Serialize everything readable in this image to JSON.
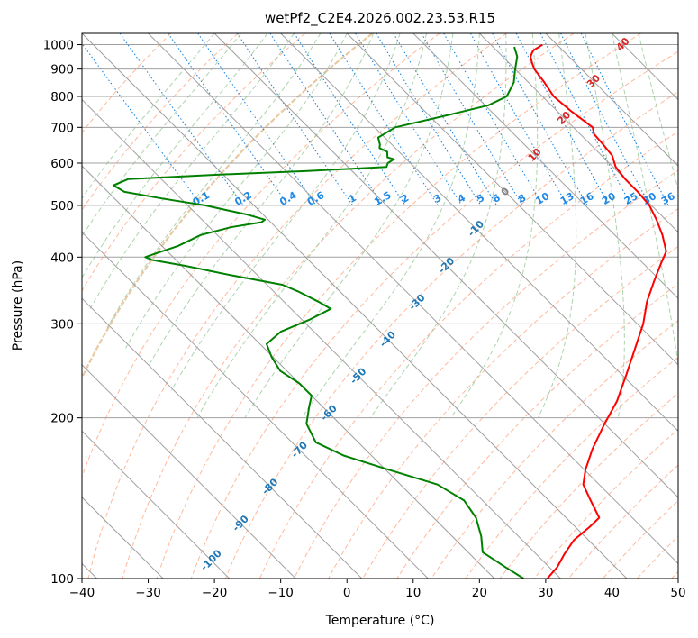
{
  "chart_data": {
    "type": "skew-t",
    "title": "wetPf2_C2E4.2026.002.23.53.R15",
    "xlabel": "Temperature (°C)",
    "ylabel": "Pressure (hPa)",
    "xlim": [
      -40,
      50
    ],
    "ylim": [
      1050,
      100
    ],
    "y_scale": "log",
    "grid": true,
    "x_ticks": [
      -40,
      -30,
      -20,
      -10,
      0,
      10,
      20,
      30,
      40,
      50
    ],
    "y_ticks": [
      100,
      200,
      300,
      400,
      500,
      600,
      700,
      800,
      900,
      1000
    ],
    "colors": {
      "temperature": "#ff0000",
      "dewpoint": "#008000",
      "isotherms": "#a0a0a0",
      "dry_adiabats": "#ffa07a",
      "moist_adiabats": "#98c898",
      "mixing_ratio": "#1e88e5",
      "zero_isotherm": "#e6c8a0"
    },
    "isotherm_labels": {
      "color": "#1f77b4",
      "values": [
        -100,
        -90,
        -80,
        -70,
        -60,
        -50,
        -40,
        -30,
        -20,
        -10
      ]
    },
    "isotherm_labels_mid": {
      "color": "#808080",
      "values": [
        0
      ]
    },
    "isotherm_labels_warm": {
      "color": "#d62728",
      "values": [
        10,
        20,
        30,
        40
      ]
    },
    "mixing_ratio_labels": {
      "color": "#1e88e5",
      "label_pressure": 500,
      "values": [
        "0.1",
        "0.2",
        "0.4",
        "0.6",
        "1",
        "1.5",
        "2",
        "3",
        "4",
        "5",
        "6",
        "8",
        "10",
        "13",
        "16",
        "20",
        "25",
        "30",
        "36"
      ]
    },
    "series": [
      {
        "name": "temperature",
        "points": [
          [
            1000,
            27.8
          ],
          [
            975,
            25.5
          ],
          [
            950,
            24.2
          ],
          [
            925,
            23.5
          ],
          [
            900,
            22.9
          ],
          [
            850,
            22.4
          ],
          [
            800,
            21.7
          ],
          [
            750,
            22.1
          ],
          [
            700,
            22.9
          ],
          [
            680,
            22.1
          ],
          [
            650,
            21.9
          ],
          [
            620,
            21.6
          ],
          [
            590,
            20.4
          ],
          [
            560,
            20.0
          ],
          [
            530,
            20.0
          ],
          [
            500,
            19.7
          ],
          [
            470,
            18.6
          ],
          [
            440,
            17.2
          ],
          [
            410,
            15.3
          ],
          [
            390,
            12.8
          ],
          [
            360,
            8.9
          ],
          [
            330,
            4.8
          ],
          [
            300,
            0.9
          ],
          [
            270,
            -4.0
          ],
          [
            240,
            -9.5
          ],
          [
            215,
            -14.7
          ],
          [
            195,
            -20.0
          ],
          [
            175,
            -25.6
          ],
          [
            160,
            -29.8
          ],
          [
            150,
            -32.4
          ],
          [
            140,
            -33.7
          ],
          [
            130,
            -35.0
          ],
          [
            125,
            -37.8
          ],
          [
            118,
            -42.2
          ],
          [
            111,
            -45.8
          ],
          [
            105,
            -48.8
          ],
          [
            100,
            -52.0
          ]
        ]
      },
      {
        "name": "dewpoint",
        "points": [
          [
            990,
            23.2
          ],
          [
            950,
            22.2
          ],
          [
            900,
            20.0
          ],
          [
            850,
            17.8
          ],
          [
            800,
            14.6
          ],
          [
            770,
            10.5
          ],
          [
            740,
            3.4
          ],
          [
            700,
            -6.9
          ],
          [
            670,
            -11.0
          ],
          [
            650,
            -11.8
          ],
          [
            640,
            -12.4
          ],
          [
            630,
            -11.8
          ],
          [
            615,
            -12.6
          ],
          [
            610,
            -11.9
          ],
          [
            600,
            -13.4
          ],
          [
            590,
            -14.2
          ],
          [
            580,
            -26.7
          ],
          [
            570,
            -42.0
          ],
          [
            560,
            -55.0
          ],
          [
            545,
            -58.2
          ],
          [
            530,
            -57.5
          ],
          [
            515,
            -52.8
          ],
          [
            500,
            -47.4
          ],
          [
            480,
            -42.3
          ],
          [
            470,
            -40.5
          ],
          [
            465,
            -41.4
          ],
          [
            455,
            -46.8
          ],
          [
            440,
            -52.5
          ],
          [
            420,
            -57.5
          ],
          [
            405,
            -62.5
          ],
          [
            400,
            -64.2
          ],
          [
            395,
            -63.6
          ],
          [
            385,
            -59.4
          ],
          [
            370,
            -54.0
          ],
          [
            355,
            -47.7
          ],
          [
            345,
            -46.3
          ],
          [
            330,
            -44.8
          ],
          [
            320,
            -44.0
          ],
          [
            305,
            -49.0
          ],
          [
            290,
            -55.0
          ],
          [
            275,
            -59.0
          ],
          [
            260,
            -60.2
          ],
          [
            245,
            -61.0
          ],
          [
            232,
            -60.0
          ],
          [
            220,
            -60.0
          ],
          [
            210,
            -62.0
          ],
          [
            195,
            -65.0
          ],
          [
            180,
            -66.4
          ],
          [
            170,
            -64.2
          ],
          [
            160,
            -59.6
          ],
          [
            150,
            -54.4
          ],
          [
            140,
            -52.8
          ],
          [
            130,
            -53.6
          ],
          [
            120,
            -55.6
          ],
          [
            112,
            -57.8
          ],
          [
            105,
            -56.6
          ],
          [
            100,
            -55.6
          ]
        ]
      }
    ]
  }
}
